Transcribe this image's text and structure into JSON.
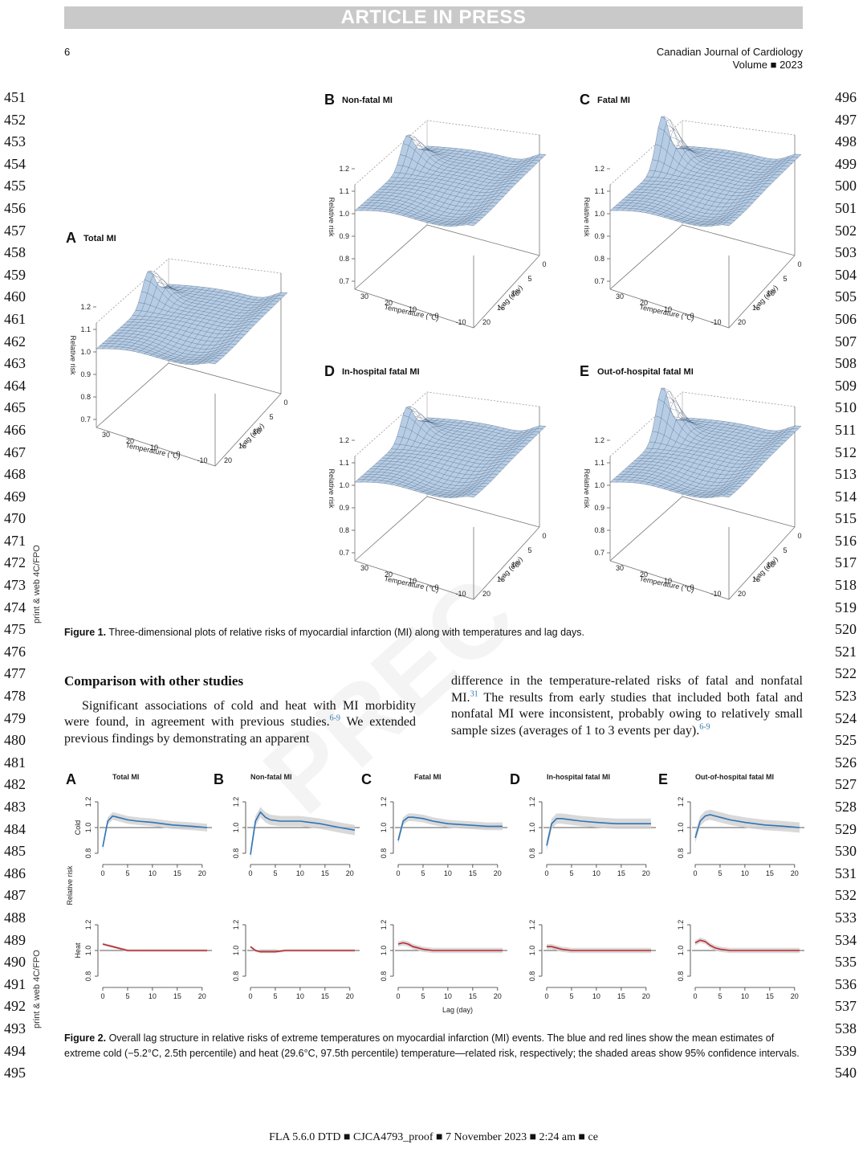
{
  "header": {
    "banner": "ARTICLE IN PRESS",
    "page_number": "6",
    "journal": "Canadian Journal of Cardiology",
    "volume": "Volume ■ 2023"
  },
  "line_numbers": {
    "left": [
      "451",
      "452",
      "453",
      "454",
      "455",
      "456",
      "457",
      "458",
      "459",
      "460",
      "461",
      "462",
      "463",
      "464",
      "465",
      "466",
      "467",
      "468",
      "469",
      "470",
      "471",
      "472",
      "473",
      "474",
      "475",
      "476",
      "477",
      "478",
      "479",
      "480",
      "481",
      "482",
      "483",
      "484",
      "485",
      "486",
      "487",
      "488",
      "489",
      "490",
      "491",
      "492",
      "493",
      "494",
      "495"
    ],
    "right": [
      "496",
      "497",
      "498",
      "499",
      "500",
      "501",
      "502",
      "503",
      "504",
      "505",
      "506",
      "507",
      "508",
      "509",
      "510",
      "511",
      "512",
      "513",
      "514",
      "515",
      "516",
      "517",
      "518",
      "519",
      "520",
      "521",
      "522",
      "523",
      "524",
      "525",
      "526",
      "527",
      "528",
      "529",
      "530",
      "531",
      "532",
      "533",
      "534",
      "535",
      "536",
      "537",
      "538",
      "539",
      "540"
    ]
  },
  "side_notes": {
    "fpo1": "print & web 4C/FPO",
    "fpo2": "print & web 4C/FPO"
  },
  "watermark": "PREC",
  "figure1": {
    "caption_label": "Figure 1.",
    "caption_text": "Three-dimensional plots of relative risks of myocardial infarction (MI) along with temperatures and lag days.",
    "panels": [
      {
        "letter": "A",
        "title": "Total MI"
      },
      {
        "letter": "B",
        "title": "Non-fatal MI"
      },
      {
        "letter": "C",
        "title": "Fatal MI"
      },
      {
        "letter": "D",
        "title": "In-hospital fatal MI"
      },
      {
        "letter": "E",
        "title": "Out-of-hospital fatal MI"
      }
    ],
    "z_ticks": [
      "1.2",
      "1.1",
      "1.0",
      "0.9",
      "0.8",
      "0.7"
    ],
    "temp_ticks": [
      "30",
      "20",
      "10",
      "0",
      "-10"
    ],
    "lag_ticks": [
      "0",
      "5",
      "10",
      "15",
      "20"
    ],
    "z_label": "Relative risk",
    "x_label": "Temperature (℃)",
    "y_label": "Lag (day)",
    "surface_color": "#b7cde6"
  },
  "section": {
    "heading": "Comparison with other studies",
    "left_text": "Significant associations of cold and heat with MI morbidity were found, in agreement with previous studies.",
    "left_ref": "6-9",
    "left_text2": " We extended previous findings by demonstrating an apparent",
    "right_text1": "difference in the temperature-related risks of fatal and nonfatal MI.",
    "right_ref1": "31",
    "right_text2": " The results from early studies that included both fatal and nonfatal MI were inconsistent, probably owing to relatively small sample sizes (averages of 1 to 3 events per day).",
    "right_ref2": "6-9"
  },
  "figure2": {
    "caption_label": "Figure 2.",
    "caption_text": "Overall lag structure in relative risks of extreme temperatures on myocardial infarction (MI) events. The blue and red lines show the mean estimates of extreme cold (−5.2°C, 2.5th percentile) and heat (29.6°C, 97.5th percentile) temperature—related risk, respectively; the shaded areas show 95% confidence intervals.",
    "row_labels": [
      "Cold",
      "Heat"
    ],
    "y_label": "Relative risk",
    "x_label": "Lag (day)",
    "cold_color": "#2e75b6",
    "heat_color": "#c0282d"
  },
  "chart_data": [
    {
      "type": "line",
      "title": "Total MI",
      "xlabel": "Lag (day)",
      "ylabel": "Relative risk",
      "xlim": [
        0,
        21
      ],
      "ylim": [
        0.75,
        1.25
      ],
      "xticks": [
        0,
        5,
        10,
        15,
        20
      ],
      "yticks": [
        0.8,
        1.0,
        1.2
      ],
      "series": [
        {
          "name": "Cold",
          "x": [
            0,
            1,
            2,
            3,
            5,
            7,
            10,
            14,
            18,
            21
          ],
          "y": [
            0.85,
            1.05,
            1.09,
            1.08,
            1.06,
            1.05,
            1.04,
            1.02,
            1.01,
            1.0
          ],
          "ci": 0.03
        },
        {
          "name": "Heat",
          "x": [
            0,
            1,
            2,
            3,
            4,
            5,
            7,
            10,
            14,
            18,
            21
          ],
          "y": [
            1.05,
            1.04,
            1.03,
            1.02,
            1.01,
            1.0,
            1.0,
            1.0,
            1.0,
            1.0,
            1.0
          ],
          "ci": 0.01
        }
      ]
    },
    {
      "type": "line",
      "title": "Non-fatal MI",
      "xlabel": "Lag (day)",
      "ylabel": "Relative risk",
      "xlim": [
        0,
        21
      ],
      "ylim": [
        0.75,
        1.25
      ],
      "xticks": [
        0,
        5,
        10,
        15,
        20
      ],
      "yticks": [
        0.8,
        1.0,
        1.2
      ],
      "series": [
        {
          "name": "Cold",
          "x": [
            0,
            1,
            2,
            3,
            4,
            6,
            8,
            10,
            14,
            18,
            21
          ],
          "y": [
            0.79,
            1.05,
            1.12,
            1.08,
            1.06,
            1.05,
            1.05,
            1.05,
            1.03,
            1.0,
            0.98
          ],
          "ci": 0.04
        },
        {
          "name": "Heat",
          "x": [
            0,
            1,
            2,
            3,
            5,
            7,
            10,
            14,
            18,
            21
          ],
          "y": [
            1.03,
            1.0,
            0.99,
            0.99,
            0.99,
            1.0,
            1.0,
            1.0,
            1.0,
            1.0
          ],
          "ci": 0.01
        }
      ]
    },
    {
      "type": "line",
      "title": "Fatal MI",
      "xlabel": "Lag (day)",
      "ylabel": "Relative risk",
      "xlim": [
        0,
        21
      ],
      "ylim": [
        0.75,
        1.25
      ],
      "xticks": [
        0,
        5,
        10,
        15,
        20
      ],
      "yticks": [
        0.8,
        1.0,
        1.2
      ],
      "series": [
        {
          "name": "Cold",
          "x": [
            0,
            1,
            2,
            3,
            5,
            7,
            10,
            14,
            18,
            21
          ],
          "y": [
            0.9,
            1.05,
            1.08,
            1.08,
            1.07,
            1.05,
            1.03,
            1.02,
            1.01,
            1.01
          ],
          "ci": 0.03
        },
        {
          "name": "Heat",
          "x": [
            0,
            1,
            2,
            3,
            4,
            5,
            7,
            10,
            14,
            18,
            21
          ],
          "y": [
            1.05,
            1.06,
            1.05,
            1.03,
            1.02,
            1.01,
            1.0,
            1.0,
            1.0,
            1.0,
            1.0
          ],
          "ci": 0.02
        }
      ]
    },
    {
      "type": "line",
      "title": "In-hospital fatal MI",
      "xlabel": "Lag (day)",
      "ylabel": "Relative risk",
      "xlim": [
        0,
        21
      ],
      "ylim": [
        0.75,
        1.25
      ],
      "xticks": [
        0,
        5,
        10,
        15,
        20
      ],
      "yticks": [
        0.8,
        1.0,
        1.2
      ],
      "series": [
        {
          "name": "Cold",
          "x": [
            0,
            1,
            2,
            3,
            5,
            7,
            10,
            14,
            18,
            21
          ],
          "y": [
            0.86,
            1.03,
            1.07,
            1.07,
            1.06,
            1.05,
            1.04,
            1.03,
            1.03,
            1.03
          ],
          "ci": 0.04
        },
        {
          "name": "Heat",
          "x": [
            0,
            1,
            2,
            3,
            5,
            7,
            10,
            14,
            18,
            21
          ],
          "y": [
            1.03,
            1.03,
            1.02,
            1.01,
            1.0,
            1.0,
            1.0,
            1.0,
            1.0,
            1.0
          ],
          "ci": 0.02
        }
      ]
    },
    {
      "type": "line",
      "title": "Out-of-hospital fatal MI",
      "xlabel": "Lag (day)",
      "ylabel": "Relative risk",
      "xlim": [
        0,
        21
      ],
      "ylim": [
        0.75,
        1.25
      ],
      "xticks": [
        0,
        5,
        10,
        15,
        20
      ],
      "yticks": [
        0.8,
        1.0,
        1.2
      ],
      "series": [
        {
          "name": "Cold",
          "x": [
            0,
            1,
            2,
            3,
            4,
            5,
            7,
            10,
            14,
            18,
            21
          ],
          "y": [
            0.92,
            1.05,
            1.09,
            1.1,
            1.09,
            1.08,
            1.06,
            1.04,
            1.02,
            1.01,
            1.0
          ],
          "ci": 0.04
        },
        {
          "name": "Heat",
          "x": [
            0,
            1,
            2,
            3,
            4,
            5,
            7,
            10,
            14,
            18,
            21
          ],
          "y": [
            1.06,
            1.08,
            1.07,
            1.04,
            1.02,
            1.01,
            1.0,
            1.0,
            1.0,
            1.0,
            1.0
          ],
          "ci": 0.02
        }
      ]
    }
  ],
  "footer": "FLA 5.6.0 DTD ■ CJCA4793_proof ■ 7 November 2023 ■ 2:24 am ■ ce"
}
